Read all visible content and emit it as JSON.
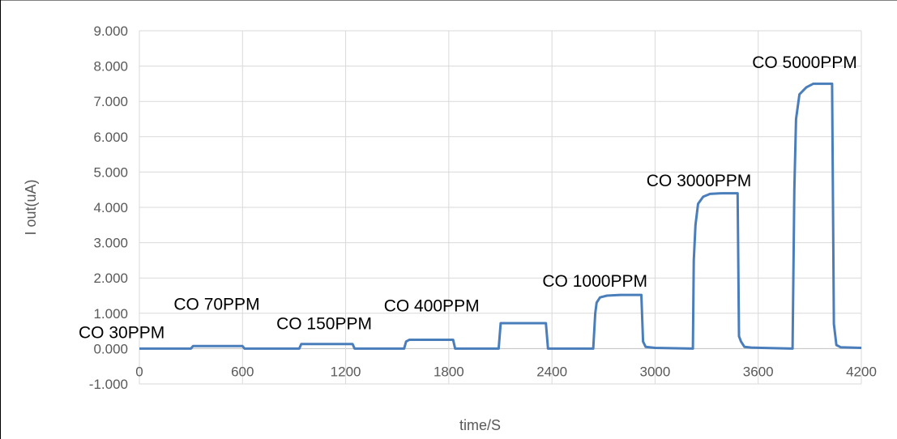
{
  "chart_data": {
    "type": "line",
    "title": "",
    "xlabel": "time/S",
    "ylabel": "I out(uA)",
    "xlim": [
      0,
      4200
    ],
    "ylim": [
      -1,
      9
    ],
    "x_ticks": [
      0,
      600,
      1200,
      1800,
      2400,
      3000,
      3600,
      4200
    ],
    "x_tick_labels": [
      "0",
      "600",
      "1200",
      "1800",
      "2400",
      "3000",
      "3600",
      "4200"
    ],
    "y_ticks": [
      -1,
      0,
      1,
      2,
      3,
      4,
      5,
      6,
      7,
      8,
      9
    ],
    "y_tick_labels": [
      "-1.000",
      "0.000",
      "1.000",
      "2.000",
      "3.000",
      "4.000",
      "5.000",
      "6.000",
      "7.000",
      "8.000",
      "9.000"
    ],
    "grid": true,
    "legend": "none",
    "series_color": "#4a7ebb",
    "grid_color": "#d9d9d9",
    "series": [
      {
        "x": [
          0,
          300,
          312,
          600,
          612,
          930,
          942,
          1240,
          1252,
          1540,
          1552,
          1570,
          1825,
          1837,
          2090,
          2102,
          2365,
          2377,
          2640,
          2652,
          2660,
          2680,
          2720,
          2800,
          2920,
          2930,
          2945,
          3000,
          3220,
          3225,
          3235,
          3250,
          3280,
          3320,
          3390,
          3480,
          3488,
          3500,
          3520,
          3560,
          3620,
          3800,
          3810,
          3820,
          3840,
          3880,
          3920,
          4030,
          4040,
          4055,
          4080,
          4200
        ],
        "y": [
          0.0,
          0.0,
          0.07,
          0.07,
          0.0,
          0.0,
          0.13,
          0.13,
          0.0,
          0.0,
          0.2,
          0.25,
          0.25,
          0.0,
          0.0,
          0.72,
          0.72,
          0.0,
          0.0,
          1.0,
          1.3,
          1.45,
          1.5,
          1.52,
          1.52,
          0.2,
          0.05,
          0.02,
          0.0,
          2.5,
          3.5,
          4.1,
          4.3,
          4.38,
          4.4,
          4.4,
          0.35,
          0.2,
          0.05,
          0.03,
          0.02,
          0.0,
          4.5,
          6.5,
          7.2,
          7.4,
          7.5,
          7.5,
          0.7,
          0.1,
          0.04,
          0.02
        ]
      }
    ],
    "annotations": [
      {
        "text": "CO 30PPM",
        "x": 0,
        "y": 0.3
      },
      {
        "text": "CO 70PPM",
        "x": 450,
        "y": 1.1
      },
      {
        "text": "CO 150PPM",
        "x": 1075,
        "y": 0.55
      },
      {
        "text": "CO 400PPM",
        "x": 1700,
        "y": 1.05
      },
      {
        "text": "CO 1000PPM",
        "x": 2650,
        "y": 1.75
      },
      {
        "text": "CO 3000PPM",
        "x": 3255,
        "y": 4.6
      },
      {
        "text": "CO 5000PPM",
        "x": 3870,
        "y": 7.95
      }
    ]
  }
}
